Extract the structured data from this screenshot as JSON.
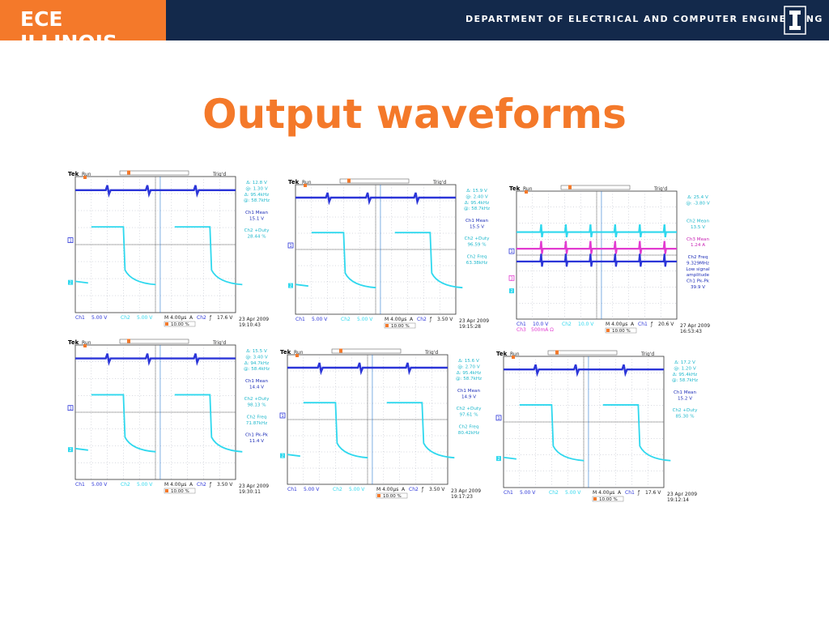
{
  "header": {
    "logo": "ECE ILLINOIS",
    "department": "DEPARTMENT OF ELECTRICAL AND COMPUTER ENGINEERING",
    "brand_color": "#13294b",
    "accent_color": "#f4792a",
    "emblem_icon": "illinois-block-i-icon"
  },
  "slide": {
    "title": "Output waveforms"
  },
  "scopes": [
    {
      "brand": "Tek",
      "status": "Run",
      "trig": "Trig'd",
      "readouts": [
        {
          "text": "Δ:    12.8 V",
          "color": "cyan"
        },
        {
          "text": "@:     1.30 V",
          "color": "cyan"
        },
        {
          "text": "Δ:  95.4kHz",
          "color": "cyan"
        },
        {
          "text": "@:  58.7kHz",
          "color": "cyan"
        },
        {
          "text": "",
          "color": "cyan"
        },
        {
          "text": "Ch1 Mean",
          "color": "blue"
        },
        {
          "text": "15.1 V",
          "color": "blue"
        },
        {
          "text": "",
          "color": "cyan"
        },
        {
          "text": "Ch2 +Duty",
          "color": "cyan"
        },
        {
          "text": "28.44 %",
          "color": "cyan"
        }
      ],
      "scale": {
        "ch1": "5.00 V",
        "ch2": "5.00 V",
        "time": "M 4.00µs",
        "trig_src": "Ch2",
        "trig_level": "17.6 V",
        "pct": "10.00 %"
      },
      "date": "23 Apr 2009",
      "time": "19:10:43"
    },
    {
      "brand": "Tek",
      "status": "Run",
      "trig": "Trig'd",
      "readouts": [
        {
          "text": "Δ:    15.9 V",
          "color": "cyan"
        },
        {
          "text": "@:     2.40 V",
          "color": "cyan"
        },
        {
          "text": "Δ:  95.4kHz",
          "color": "cyan"
        },
        {
          "text": "@:  58.7kHz",
          "color": "cyan"
        },
        {
          "text": "",
          "color": "cyan"
        },
        {
          "text": "Ch1 Mean",
          "color": "blue"
        },
        {
          "text": "15.5 V",
          "color": "blue"
        },
        {
          "text": "",
          "color": "cyan"
        },
        {
          "text": "Ch2 +Duty",
          "color": "cyan"
        },
        {
          "text": "96.59 %",
          "color": "cyan"
        },
        {
          "text": "",
          "color": "cyan"
        },
        {
          "text": "Ch2 Freq",
          "color": "cyan"
        },
        {
          "text": "63.38kHz",
          "color": "cyan"
        }
      ],
      "scale": {
        "ch1": "5.00 V",
        "ch2": "5.00 V",
        "time": "M 4.00µs",
        "trig_src": "Ch2",
        "trig_level": "3.50 V",
        "pct": "10.00 %"
      },
      "date": "23 Apr 2009",
      "time": "19:15:28"
    },
    {
      "brand": "Tek",
      "status": "Run",
      "trig": "Trig'd",
      "readouts": [
        {
          "text": "Δ:    25.4 V",
          "color": "cyan"
        },
        {
          "text": "@:    -3.80 V",
          "color": "cyan"
        },
        {
          "text": "",
          "color": "cyan"
        },
        {
          "text": "",
          "color": "cyan"
        },
        {
          "text": "Ch2 Mean",
          "color": "cyan"
        },
        {
          "text": "13.5 V",
          "color": "cyan"
        },
        {
          "text": "",
          "color": "cyan"
        },
        {
          "text": "Ch3 Mean",
          "color": "magenta"
        },
        {
          "text": "1.24 A",
          "color": "magenta"
        },
        {
          "text": "",
          "color": "cyan"
        },
        {
          "text": "Ch2 Freq",
          "color": "blue"
        },
        {
          "text": "9.329MHz",
          "color": "blue"
        },
        {
          "text": "Low signal",
          "color": "blue"
        },
        {
          "text": "amplitude",
          "color": "blue"
        },
        {
          "text": "Ch1 Pk-Pk",
          "color": "blue"
        },
        {
          "text": "39.9 V",
          "color": "blue"
        }
      ],
      "scale": {
        "ch1": "10.0 V",
        "ch2": "10.0 V",
        "ch3": "500mA Ω",
        "time": "M 4.00µs",
        "trig_src": "Ch1",
        "trig_level": "20.6 V",
        "pct": "10.00 %"
      },
      "date": "27 Apr 2009",
      "time": "16:53:43"
    },
    {
      "brand": "Tek",
      "status": "Run",
      "trig": "Trig'd",
      "readouts": [
        {
          "text": "Δ:    15.5 V",
          "color": "cyan"
        },
        {
          "text": "@:     3.40 V",
          "color": "cyan"
        },
        {
          "text": "Δ:  94.7kHz",
          "color": "cyan"
        },
        {
          "text": "@:  58.4kHz",
          "color": "cyan"
        },
        {
          "text": "",
          "color": "cyan"
        },
        {
          "text": "Ch1 Mean",
          "color": "blue"
        },
        {
          "text": "14.4 V",
          "color": "blue"
        },
        {
          "text": "",
          "color": "cyan"
        },
        {
          "text": "Ch2 +Duty",
          "color": "cyan"
        },
        {
          "text": "98.13 %",
          "color": "cyan"
        },
        {
          "text": "",
          "color": "cyan"
        },
        {
          "text": "Ch2 Freq",
          "color": "cyan"
        },
        {
          "text": "71.87kHz",
          "color": "cyan"
        },
        {
          "text": "",
          "color": "cyan"
        },
        {
          "text": "Ch1 Pk-Pk",
          "color": "blue"
        },
        {
          "text": "11.4 V",
          "color": "blue"
        }
      ],
      "scale": {
        "ch1": "5.00 V",
        "ch2": "5.00 V",
        "time": "M 4.00µs",
        "trig_src": "Ch2",
        "trig_level": "3.50 V",
        "pct": "10.00 %"
      },
      "date": "23 Apr 2009",
      "time": "19:30:11"
    },
    {
      "brand": "Tek",
      "status": "Run",
      "trig": "Trig'd",
      "readouts": [
        {
          "text": "Δ:    15.6 V",
          "color": "cyan"
        },
        {
          "text": "@:     2.70 V",
          "color": "cyan"
        },
        {
          "text": "Δ:  95.4kHz",
          "color": "cyan"
        },
        {
          "text": "@:  58.7kHz",
          "color": "cyan"
        },
        {
          "text": "",
          "color": "cyan"
        },
        {
          "text": "Ch1 Mean",
          "color": "blue"
        },
        {
          "text": "14.9 V",
          "color": "blue"
        },
        {
          "text": "",
          "color": "cyan"
        },
        {
          "text": "Ch2 +Duty",
          "color": "cyan"
        },
        {
          "text": "97.61 %",
          "color": "cyan"
        },
        {
          "text": "",
          "color": "cyan"
        },
        {
          "text": "Ch2 Freq",
          "color": "cyan"
        },
        {
          "text": "80.42kHz",
          "color": "cyan"
        }
      ],
      "scale": {
        "ch1": "5.00 V",
        "ch2": "5.00 V",
        "time": "M 4.00µs",
        "trig_src": "Ch2",
        "trig_level": "3.50 V",
        "pct": "10.00 %"
      },
      "date": "23 Apr 2009",
      "time": "19:17:23"
    },
    {
      "brand": "Tek",
      "status": "Run",
      "trig": "Trig'd",
      "readouts": [
        {
          "text": "Δ:    17.2 V",
          "color": "cyan"
        },
        {
          "text": "@:     1.20 V",
          "color": "cyan"
        },
        {
          "text": "Δ:  95.4kHz",
          "color": "cyan"
        },
        {
          "text": "@:  58.7kHz",
          "color": "cyan"
        },
        {
          "text": "",
          "color": "cyan"
        },
        {
          "text": "Ch1 Mean",
          "color": "blue"
        },
        {
          "text": "15.2 V",
          "color": "blue"
        },
        {
          "text": "",
          "color": "cyan"
        },
        {
          "text": "Ch2 +Duty",
          "color": "cyan"
        },
        {
          "text": "85.30 %",
          "color": "cyan"
        }
      ],
      "scale": {
        "ch1": "5.00 V",
        "ch2": "5.00 V",
        "time": "M 4.00µs",
        "trig_src": "Ch1",
        "trig_level": "17.6 V",
        "pct": "10.00 %"
      },
      "date": "23 Apr 2009",
      "time": "19:12:14"
    }
  ],
  "colors": {
    "ch1": "#2b35d8",
    "ch2": "#2fd8ee",
    "ch3": "#e23bd0",
    "grid": "#9aa0b0",
    "readout_blue": "#1f2fb8",
    "readout_cyan": "#1fb8cc",
    "readout_magenta": "#c81fb4"
  }
}
